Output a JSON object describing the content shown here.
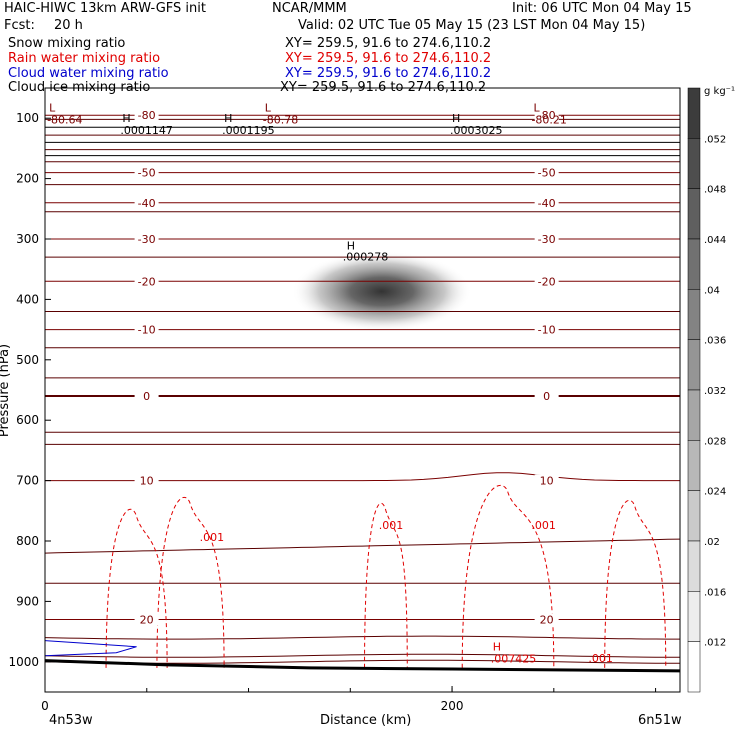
{
  "header": {
    "model": "HAIC-HIWC 13km ARW-GFS init",
    "org": "NCAR/MMM",
    "init": "Init: 06 UTC Mon 04 May 15",
    "fcst_label": "Fcst:",
    "fcst_value": "20 h",
    "valid": "Valid: 02 UTC Tue 05 May 15 (23 LST Mon 04 May 15)",
    "fields": [
      {
        "name": "Snow mixing ratio",
        "xy": "XY= 259.5, 91.6 to 274.6,110.2",
        "color": "#000000"
      },
      {
        "name": "Rain water mixing ratio",
        "xy": "XY= 259.5, 91.6 to 274.6,110.2",
        "color": "#e00000"
      },
      {
        "name": "Cloud water mixing ratio",
        "xy": "XY= 259.5, 91.6 to 274.6,110.2",
        "color": "#0000cc"
      },
      {
        "name": "Cloud ice mixing ratio",
        "xy": "XY= 259.5, 91.6 to 274.6,110.2",
        "color": "#000000"
      }
    ]
  },
  "chart_data": {
    "type": "heatmap",
    "xlabel": "Distance (km)",
    "ylabel": "Pressure (hPa)",
    "x_ticks": [
      "0",
      "200"
    ],
    "x_start_label": "4n53w",
    "x_end_label": "6n51w",
    "y_ticks": [
      "100",
      "200",
      "300",
      "400",
      "500",
      "600",
      "700",
      "800",
      "900",
      "1000"
    ],
    "ylim": [
      1050,
      50
    ],
    "xlim": [
      0,
      312
    ],
    "colorbar": {
      "unit": "g kg⁻¹",
      "ticks": [
        ".052",
        ".048",
        ".044",
        ".04",
        ".036",
        ".032",
        ".028",
        ".024",
        ".02",
        ".016",
        ".012"
      ]
    },
    "snow_max": {
      "x": 163,
      "p": 400,
      "label": "H",
      "value": ".000278"
    },
    "temperature_contours": [
      {
        "label": "-80",
        "p": 95
      },
      {
        "label": "-50",
        "p": 190
      },
      {
        "label": "-40",
        "p": 240
      },
      {
        "label": "-30",
        "p": 300
      },
      {
        "label": "-20",
        "p": 370
      },
      {
        "label": "-10",
        "p": 450
      },
      {
        "label": "0",
        "p": 560
      },
      {
        "label": "10",
        "p": 700
      },
      {
        "label": "20",
        "p": 930
      }
    ],
    "extrema_labels": [
      {
        "text": "L",
        "value": "-80.64",
        "x": 2,
        "p": 92
      },
      {
        "text": "L",
        "value": "-80.78",
        "x": 108,
        "p": 92
      },
      {
        "text": "L",
        "value": "-80.21",
        "x": 240,
        "p": 92
      },
      {
        "text": "H",
        "value": ".0001147",
        "x": 38,
        "p": 110
      },
      {
        "text": "H",
        "value": ".0001195",
        "x": 88,
        "p": 110
      },
      {
        "text": "H",
        "value": ".0003025",
        "x": 200,
        "p": 110
      },
      {
        "text": "H",
        "value": ".007425",
        "x": 220,
        "p": 985
      }
    ],
    "rain_contour_label": ".001",
    "cloud_water_region": {
      "x": [
        0,
        48
      ],
      "p": [
        960,
        1000
      ]
    }
  }
}
